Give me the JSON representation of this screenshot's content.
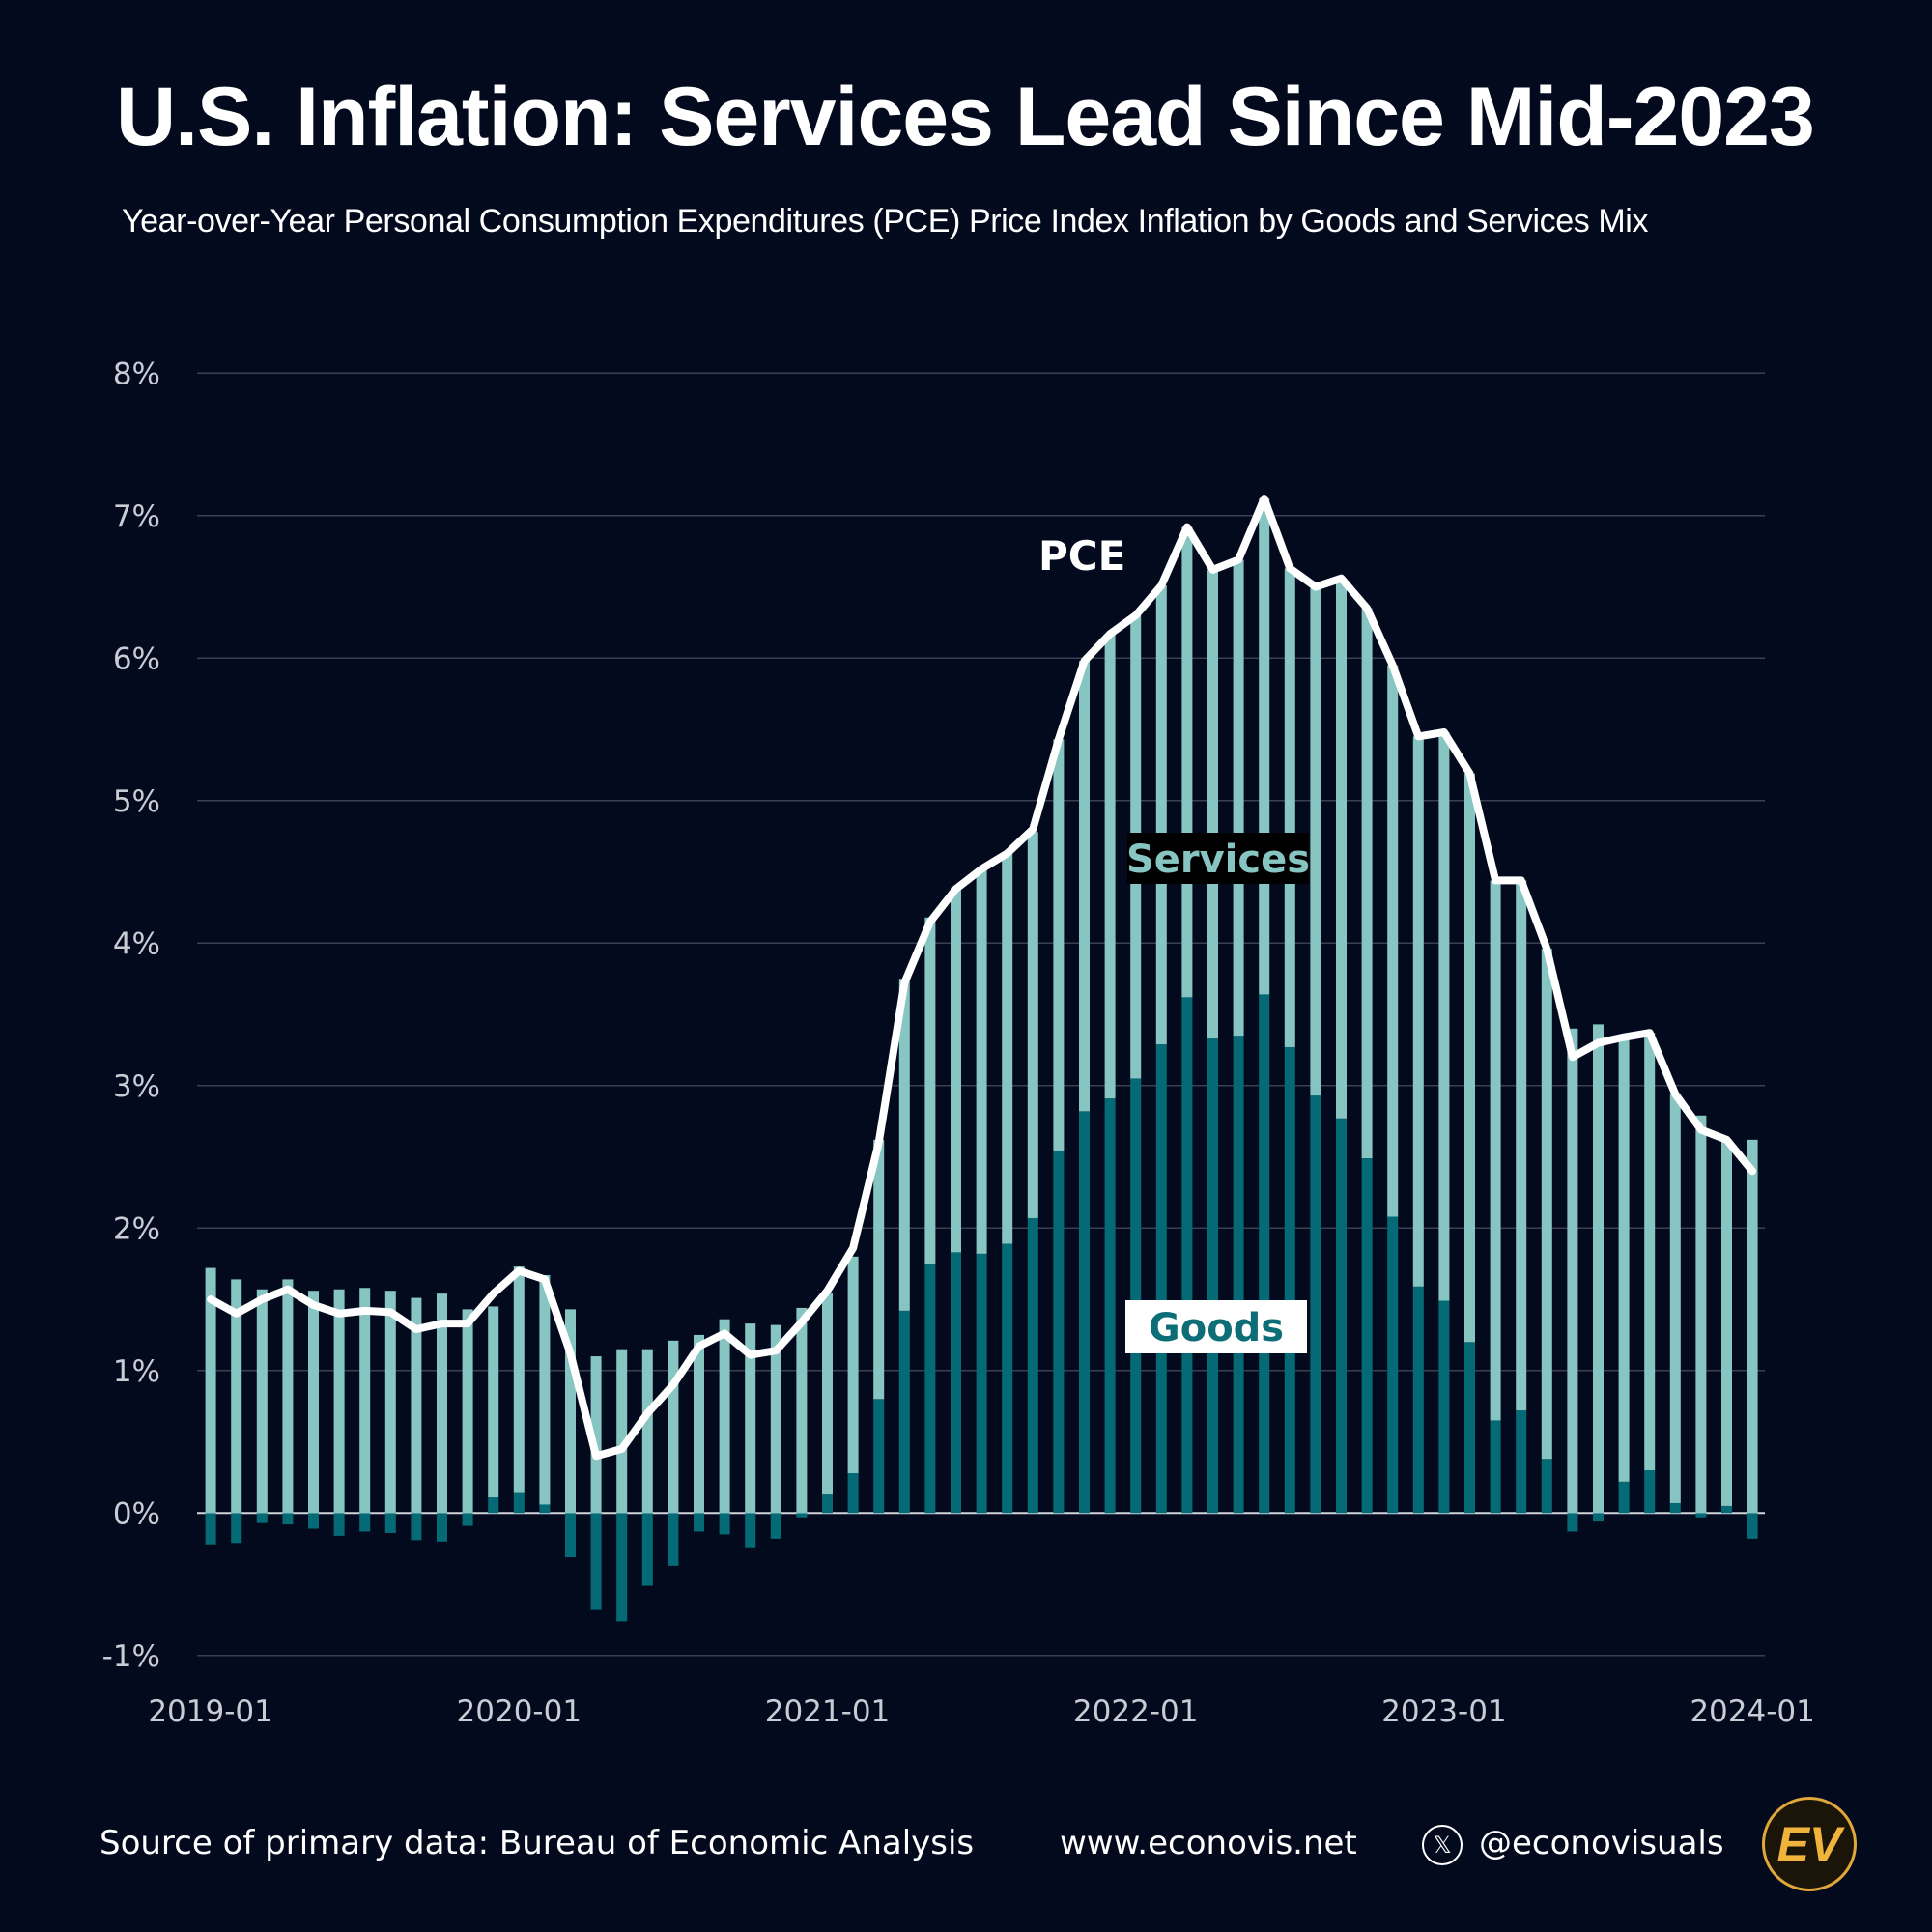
{
  "title": "U.S. Inflation: Services Lead Since Mid-2023",
  "subtitle": "Year-over-Year Personal Consumption Expenditures (PCE) Price Index Inflation by Goods and Services Mix",
  "footer": {
    "source": "Source of primary data: Bureau of Economic Analysis",
    "website": "www.econovis.net",
    "x_icon": "x-logo-icon",
    "handle": "@econovisuals",
    "logo": "EV"
  },
  "colors": {
    "background": "#040a1e",
    "services": "#86c5c1",
    "goods": "#046b76",
    "pce": "#ffffff",
    "grid": "#3a3f52"
  },
  "chart_data": {
    "type": "bar",
    "stacked": true,
    "title": "U.S. Inflation: Services Lead Since Mid-2023",
    "ylim": [
      -1,
      8
    ],
    "yticks": [
      "8%",
      "7%",
      "6%",
      "5%",
      "4%",
      "3%",
      "2%",
      "1%",
      "0%",
      "-1%"
    ],
    "ytick_values": [
      8,
      7,
      6,
      5,
      4,
      3,
      2,
      1,
      0,
      -1
    ],
    "xticks": [
      "2019-01",
      "2020-01",
      "2021-01",
      "2022-01",
      "2023-01",
      "2024-01"
    ],
    "grid": true,
    "start": "2019-01",
    "frequency": "monthly",
    "series_labels": {
      "pce": "PCE",
      "services": "Services",
      "goods": "Goods"
    },
    "series": [
      {
        "name": "Goods",
        "values": [
          -0.22,
          -0.21,
          -0.07,
          -0.08,
          -0.11,
          -0.16,
          -0.13,
          -0.14,
          -0.19,
          -0.2,
          -0.09,
          0.11,
          0.14,
          0.06,
          -0.31,
          -0.68,
          -0.76,
          -0.51,
          -0.37,
          -0.13,
          -0.15,
          -0.24,
          -0.18,
          -0.03,
          0.13,
          0.28,
          0.8,
          1.42,
          1.75,
          1.83,
          1.82,
          1.89,
          2.07,
          2.54,
          2.82,
          2.91,
          3.05,
          3.29,
          3.62,
          3.33,
          3.35,
          3.64,
          3.27,
          2.93,
          2.77,
          2.49,
          2.08,
          1.59,
          1.49,
          1.2,
          0.65,
          0.72,
          0.38,
          -0.13,
          -0.06,
          0.22,
          0.3,
          0.07,
          -0.03,
          0.05,
          -0.18
        ]
      },
      {
        "name": "Services",
        "values": [
          1.72,
          1.64,
          1.57,
          1.64,
          1.56,
          1.57,
          1.58,
          1.56,
          1.51,
          1.54,
          1.43,
          1.34,
          1.59,
          1.61,
          1.43,
          1.1,
          1.15,
          1.15,
          1.21,
          1.25,
          1.36,
          1.33,
          1.32,
          1.44,
          1.41,
          1.52,
          1.82,
          2.33,
          2.43,
          2.56,
          2.7,
          2.74,
          2.71,
          2.89,
          3.16,
          3.26,
          3.25,
          3.22,
          3.3,
          3.29,
          3.34,
          3.48,
          3.36,
          3.57,
          3.79,
          3.86,
          3.87,
          3.86,
          3.99,
          3.99,
          3.79,
          3.72,
          3.58,
          3.4,
          3.43,
          3.11,
          3.07,
          2.87,
          2.79,
          2.57,
          2.62
        ]
      },
      {
        "name": "PCE",
        "type": "line",
        "values": [
          1.5,
          1.4,
          1.5,
          1.57,
          1.46,
          1.4,
          1.42,
          1.41,
          1.29,
          1.33,
          1.33,
          1.54,
          1.7,
          1.64,
          1.12,
          0.4,
          0.45,
          0.7,
          0.9,
          1.17,
          1.26,
          1.11,
          1.14,
          1.34,
          1.56,
          1.86,
          2.6,
          3.72,
          4.15,
          4.38,
          4.52,
          4.63,
          4.8,
          5.43,
          5.98,
          6.17,
          6.3,
          6.51,
          6.92,
          6.62,
          6.69,
          7.12,
          6.63,
          6.5,
          6.56,
          6.35,
          5.95,
          5.45,
          5.48,
          5.19,
          4.44,
          4.44,
          3.96,
          3.2,
          3.3,
          3.34,
          3.37,
          2.94,
          2.69,
          2.62,
          2.4
        ]
      }
    ]
  }
}
